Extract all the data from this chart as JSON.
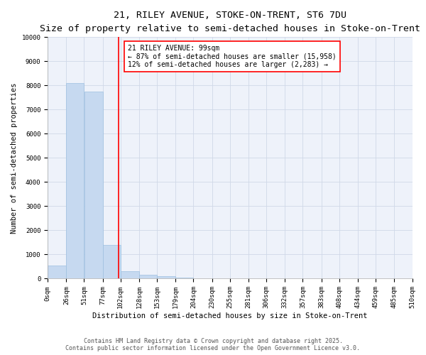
{
  "title": "21, RILEY AVENUE, STOKE-ON-TRENT, ST6 7DU",
  "subtitle": "Size of property relative to semi-detached houses in Stoke-on-Trent",
  "xlabel": "Distribution of semi-detached houses by size in Stoke-on-Trent",
  "ylabel": "Number of semi-detached properties",
  "annotation_title": "21 RILEY AVENUE: 99sqm",
  "annotation_line1": "← 87% of semi-detached houses are smaller (15,958)",
  "annotation_line2": "12% of semi-detached houses are larger (2,283) →",
  "footer1": "Contains HM Land Registry data © Crown copyright and database right 2025.",
  "footer2": "Contains public sector information licensed under the Open Government Licence v3.0.",
  "property_size": 99,
  "bins": [
    0,
    26,
    51,
    77,
    102,
    128,
    153,
    179,
    204,
    230,
    255,
    281,
    306,
    332,
    357,
    383,
    408,
    434,
    459,
    485,
    510
  ],
  "bin_labels": [
    "0sqm",
    "26sqm",
    "51sqm",
    "77sqm",
    "102sqm",
    "128sqm",
    "153sqm",
    "179sqm",
    "204sqm",
    "230sqm",
    "255sqm",
    "281sqm",
    "306sqm",
    "332sqm",
    "357sqm",
    "383sqm",
    "408sqm",
    "434sqm",
    "459sqm",
    "485sqm",
    "510sqm"
  ],
  "counts": [
    550,
    8100,
    7750,
    1400,
    300,
    150,
    100,
    50,
    0,
    0,
    0,
    0,
    0,
    0,
    0,
    0,
    0,
    0,
    0,
    0
  ],
  "bar_color": "#c6d9f0",
  "bar_edge_color": "#9dbfe0",
  "vline_color": "red",
  "vline_x": 99,
  "ylim": [
    0,
    10000
  ],
  "yticks": [
    0,
    1000,
    2000,
    3000,
    4000,
    5000,
    6000,
    7000,
    8000,
    9000,
    10000
  ],
  "grid_color": "#d0d8e8",
  "bg_color": "#eef2fa",
  "annotation_box_color": "white",
  "annotation_box_edge": "red",
  "title_fontsize": 9.5,
  "subtitle_fontsize": 8,
  "axis_label_fontsize": 7.5,
  "tick_fontsize": 6.5,
  "annotation_fontsize": 7,
  "footer_fontsize": 6
}
